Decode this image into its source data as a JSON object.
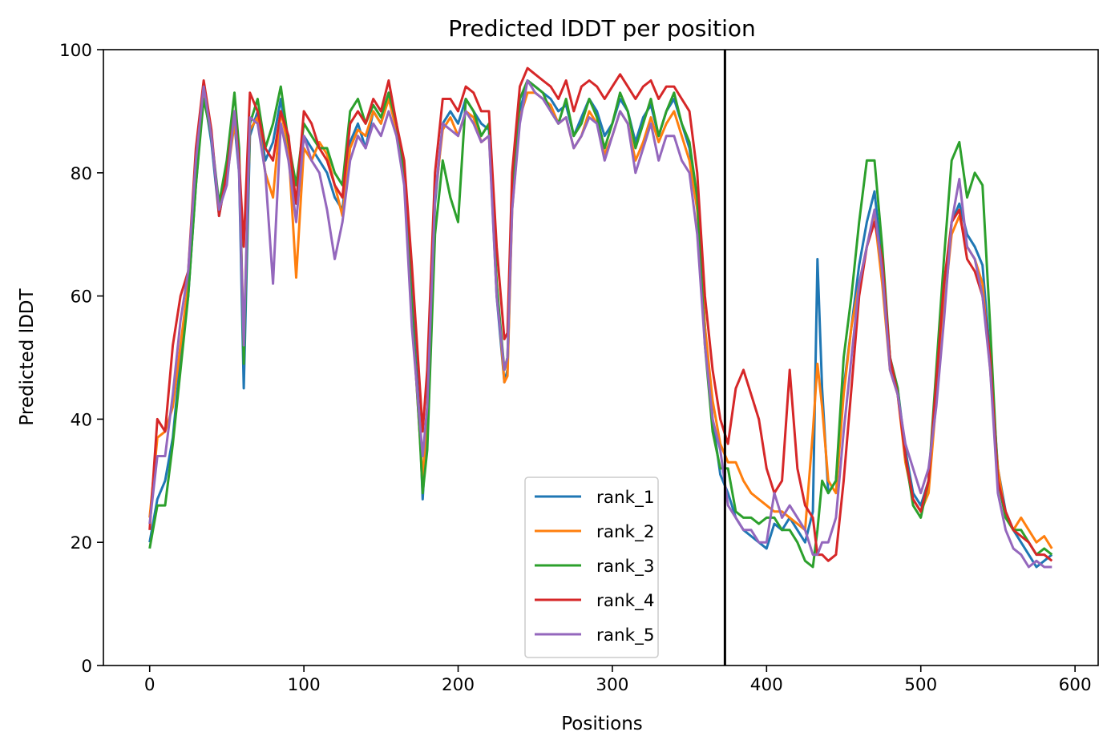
{
  "chart_data": {
    "type": "line",
    "title": "Predicted lDDT per position",
    "xlabel": "Positions",
    "ylabel": "Predicted lDDT",
    "xlim": [
      -30,
      615
    ],
    "ylim": [
      0,
      100
    ],
    "x_ticks": [
      0,
      100,
      200,
      300,
      400,
      500,
      600
    ],
    "y_ticks": [
      0,
      20,
      40,
      60,
      80,
      100
    ],
    "grid": false,
    "legend_position": "bottom-center",
    "vertical_line_x": 373,
    "series": [
      {
        "name": "rank_1",
        "color": "#1f77b4",
        "x": [
          0,
          5,
          10,
          15,
          20,
          25,
          30,
          35,
          40,
          45,
          50,
          55,
          58,
          61,
          65,
          70,
          75,
          80,
          85,
          90,
          95,
          100,
          105,
          110,
          115,
          120,
          125,
          130,
          135,
          140,
          145,
          150,
          155,
          160,
          165,
          170,
          175,
          177,
          180,
          185,
          190,
          195,
          200,
          205,
          210,
          215,
          220,
          225,
          230,
          232,
          235,
          240,
          245,
          250,
          255,
          260,
          265,
          270,
          275,
          280,
          285,
          290,
          295,
          300,
          305,
          310,
          315,
          320,
          325,
          330,
          335,
          340,
          345,
          350,
          355,
          360,
          365,
          370,
          375,
          380,
          385,
          390,
          395,
          400,
          405,
          410,
          415,
          420,
          425,
          430,
          433,
          436,
          440,
          445,
          450,
          455,
          460,
          465,
          470,
          475,
          480,
          485,
          490,
          495,
          500,
          505,
          510,
          515,
          520,
          525,
          530,
          535,
          540,
          545,
          550,
          555,
          560,
          565,
          570,
          575,
          580,
          585
        ],
        "y": [
          20,
          27,
          30,
          37,
          50,
          60,
          78,
          93,
          85,
          73,
          80,
          88,
          80,
          45,
          86,
          90,
          82,
          85,
          92,
          83,
          75,
          86,
          84,
          82,
          80,
          76,
          74,
          85,
          88,
          84,
          90,
          88,
          93,
          88,
          80,
          60,
          40,
          27,
          40,
          75,
          88,
          90,
          88,
          92,
          90,
          88,
          87,
          60,
          46,
          48,
          75,
          90,
          95,
          94,
          93,
          92,
          90,
          91,
          86,
          89,
          92,
          90,
          86,
          88,
          92,
          90,
          85,
          89,
          91,
          86,
          90,
          92,
          88,
          84,
          75,
          55,
          40,
          31,
          28,
          24,
          22,
          21,
          20,
          19,
          23,
          22,
          24,
          22,
          20,
          25,
          66,
          45,
          28,
          30,
          45,
          55,
          65,
          72,
          77,
          65,
          50,
          45,
          35,
          28,
          26,
          30,
          45,
          60,
          72,
          75,
          70,
          68,
          65,
          50,
          32,
          25,
          22,
          20,
          18,
          16,
          17,
          18
        ]
      },
      {
        "name": "rank_2",
        "color": "#ff7f0e",
        "x": [
          0,
          5,
          10,
          15,
          20,
          25,
          30,
          35,
          40,
          45,
          50,
          55,
          58,
          61,
          65,
          70,
          75,
          80,
          85,
          90,
          95,
          100,
          105,
          110,
          115,
          120,
          125,
          130,
          135,
          140,
          145,
          150,
          155,
          160,
          165,
          170,
          175,
          177,
          180,
          185,
          190,
          195,
          200,
          205,
          210,
          215,
          220,
          225,
          230,
          232,
          235,
          240,
          245,
          250,
          255,
          260,
          265,
          270,
          275,
          280,
          285,
          290,
          295,
          300,
          305,
          310,
          315,
          320,
          325,
          330,
          335,
          340,
          345,
          350,
          355,
          360,
          365,
          370,
          375,
          380,
          385,
          390,
          395,
          400,
          405,
          410,
          415,
          420,
          425,
          430,
          433,
          436,
          440,
          445,
          450,
          455,
          460,
          465,
          470,
          475,
          480,
          485,
          490,
          495,
          500,
          505,
          510,
          515,
          520,
          525,
          530,
          535,
          540,
          545,
          550,
          555,
          560,
          565,
          570,
          575,
          580,
          585
        ],
        "y": [
          24,
          37,
          38,
          42,
          52,
          62,
          80,
          93,
          86,
          74,
          79,
          88,
          82,
          52,
          87,
          89,
          80,
          76,
          90,
          84,
          63,
          84,
          82,
          85,
          83,
          78,
          73,
          84,
          87,
          86,
          90,
          88,
          92,
          87,
          79,
          58,
          38,
          30,
          42,
          76,
          87,
          89,
          86,
          90,
          89,
          85,
          86,
          62,
          46,
          47,
          74,
          89,
          93,
          93,
          92,
          91,
          88,
          89,
          84,
          86,
          90,
          88,
          83,
          86,
          90,
          88,
          82,
          85,
          89,
          85,
          88,
          90,
          86,
          82,
          74,
          55,
          43,
          36,
          33,
          33,
          30,
          28,
          27,
          26,
          25,
          25,
          24,
          23,
          22,
          38,
          49,
          42,
          30,
          28,
          44,
          55,
          62,
          68,
          73,
          62,
          48,
          44,
          33,
          27,
          25,
          28,
          43,
          58,
          70,
          73,
          68,
          66,
          62,
          48,
          32,
          24,
          22,
          24,
          22,
          20,
          21,
          19
        ]
      },
      {
        "name": "rank_3",
        "color": "#2ca02c",
        "x": [
          0,
          5,
          10,
          15,
          20,
          25,
          30,
          35,
          40,
          45,
          50,
          55,
          58,
          61,
          65,
          70,
          75,
          80,
          85,
          90,
          95,
          100,
          105,
          110,
          115,
          120,
          125,
          130,
          135,
          140,
          145,
          150,
          155,
          160,
          165,
          170,
          175,
          177,
          180,
          185,
          190,
          195,
          200,
          205,
          210,
          215,
          220,
          225,
          230,
          232,
          235,
          240,
          245,
          250,
          255,
          260,
          265,
          270,
          275,
          280,
          285,
          290,
          295,
          300,
          305,
          310,
          315,
          320,
          325,
          330,
          335,
          340,
          345,
          350,
          355,
          360,
          365,
          370,
          375,
          380,
          385,
          390,
          395,
          400,
          405,
          410,
          415,
          420,
          425,
          430,
          433,
          436,
          440,
          445,
          450,
          455,
          460,
          465,
          470,
          475,
          480,
          485,
          490,
          495,
          500,
          505,
          510,
          515,
          520,
          525,
          530,
          535,
          540,
          545,
          550,
          555,
          560,
          565,
          570,
          575,
          580,
          585
        ],
        "y": [
          19,
          26,
          26,
          36,
          48,
          60,
          78,
          92,
          86,
          75,
          82,
          93,
          84,
          49,
          88,
          92,
          84,
          88,
          94,
          85,
          78,
          88,
          86,
          84,
          84,
          80,
          78,
          90,
          92,
          88,
          91,
          89,
          93,
          88,
          80,
          58,
          38,
          28,
          35,
          70,
          82,
          76,
          72,
          92,
          90,
          86,
          88,
          62,
          48,
          50,
          76,
          92,
          95,
          94,
          93,
          90,
          88,
          92,
          86,
          88,
          92,
          89,
          84,
          88,
          93,
          90,
          84,
          88,
          92,
          86,
          90,
          93,
          88,
          85,
          76,
          52,
          38,
          32,
          32,
          25,
          24,
          24,
          23,
          24,
          24,
          22,
          22,
          20,
          17,
          16,
          22,
          30,
          28,
          30,
          50,
          60,
          72,
          82,
          82,
          68,
          50,
          45,
          34,
          26,
          24,
          30,
          48,
          66,
          82,
          85,
          76,
          80,
          78,
          55,
          30,
          24,
          22,
          22,
          20,
          18,
          19,
          18
        ]
      },
      {
        "name": "rank_4",
        "color": "#d62728",
        "x": [
          0,
          5,
          10,
          15,
          20,
          25,
          30,
          35,
          40,
          45,
          50,
          55,
          58,
          61,
          65,
          70,
          75,
          80,
          85,
          90,
          95,
          100,
          105,
          110,
          115,
          120,
          125,
          130,
          135,
          140,
          145,
          150,
          155,
          160,
          165,
          170,
          175,
          177,
          180,
          185,
          190,
          195,
          200,
          205,
          210,
          215,
          220,
          225,
          230,
          232,
          235,
          240,
          245,
          250,
          255,
          260,
          265,
          270,
          275,
          280,
          285,
          290,
          295,
          300,
          305,
          310,
          315,
          320,
          325,
          330,
          335,
          340,
          345,
          350,
          355,
          360,
          365,
          370,
          375,
          380,
          385,
          390,
          395,
          400,
          405,
          410,
          415,
          420,
          425,
          430,
          433,
          436,
          440,
          445,
          450,
          455,
          460,
          465,
          470,
          475,
          480,
          485,
          490,
          495,
          500,
          505,
          510,
          515,
          520,
          525,
          530,
          535,
          540,
          545,
          550,
          555,
          560,
          565,
          570,
          575,
          580,
          585
        ],
        "y": [
          22,
          40,
          38,
          52,
          60,
          64,
          84,
          95,
          87,
          73,
          80,
          90,
          82,
          68,
          93,
          90,
          84,
          82,
          90,
          86,
          75,
          90,
          88,
          84,
          82,
          78,
          76,
          88,
          90,
          88,
          92,
          90,
          95,
          88,
          82,
          65,
          46,
          38,
          48,
          80,
          92,
          92,
          90,
          94,
          93,
          90,
          90,
          68,
          53,
          54,
          80,
          94,
          97,
          96,
          95,
          94,
          92,
          95,
          90,
          94,
          95,
          94,
          92,
          94,
          96,
          94,
          92,
          94,
          95,
          92,
          94,
          94,
          92,
          90,
          80,
          60,
          48,
          40,
          36,
          45,
          48,
          44,
          40,
          32,
          28,
          30,
          48,
          32,
          26,
          24,
          18,
          18,
          17,
          18,
          30,
          45,
          60,
          68,
          72,
          66,
          50,
          44,
          34,
          27,
          25,
          30,
          46,
          62,
          72,
          74,
          66,
          64,
          60,
          50,
          30,
          25,
          22,
          21,
          20,
          18,
          18,
          17
        ]
      },
      {
        "name": "rank_5",
        "color": "#9467bd",
        "x": [
          0,
          5,
          10,
          15,
          20,
          25,
          30,
          35,
          40,
          45,
          50,
          55,
          58,
          61,
          65,
          70,
          75,
          80,
          85,
          90,
          95,
          100,
          105,
          110,
          115,
          120,
          125,
          130,
          135,
          140,
          145,
          150,
          155,
          160,
          165,
          170,
          175,
          177,
          180,
          185,
          190,
          195,
          200,
          205,
          210,
          215,
          220,
          225,
          230,
          232,
          235,
          240,
          245,
          250,
          255,
          260,
          265,
          270,
          275,
          280,
          285,
          290,
          295,
          300,
          305,
          310,
          315,
          320,
          325,
          330,
          335,
          340,
          345,
          350,
          355,
          360,
          365,
          370,
          375,
          380,
          385,
          390,
          395,
          400,
          405,
          410,
          415,
          420,
          425,
          430,
          433,
          436,
          440,
          445,
          450,
          455,
          460,
          465,
          470,
          475,
          480,
          485,
          490,
          495,
          500,
          505,
          510,
          515,
          520,
          525,
          530,
          535,
          540,
          545,
          550,
          555,
          560,
          565,
          570,
          575,
          580,
          585
        ],
        "y": [
          23,
          34,
          34,
          44,
          56,
          64,
          82,
          94,
          86,
          74,
          78,
          90,
          80,
          52,
          89,
          88,
          80,
          62,
          88,
          82,
          72,
          86,
          82,
          80,
          74,
          66,
          72,
          82,
          86,
          84,
          88,
          86,
          90,
          86,
          78,
          55,
          40,
          34,
          42,
          76,
          88,
          87,
          86,
          90,
          88,
          85,
          86,
          60,
          48,
          50,
          74,
          88,
          95,
          93,
          92,
          90,
          88,
          89,
          84,
          86,
          89,
          88,
          82,
          86,
          90,
          88,
          80,
          84,
          88,
          82,
          86,
          86,
          82,
          80,
          70,
          52,
          40,
          35,
          26,
          24,
          22,
          22,
          20,
          20,
          28,
          24,
          26,
          24,
          22,
          18,
          18,
          20,
          20,
          24,
          38,
          50,
          62,
          68,
          74,
          64,
          48,
          44,
          36,
          32,
          28,
          32,
          42,
          56,
          72,
          79,
          68,
          66,
          60,
          48,
          28,
          22,
          19,
          18,
          16,
          17,
          16,
          16
        ]
      }
    ]
  }
}
